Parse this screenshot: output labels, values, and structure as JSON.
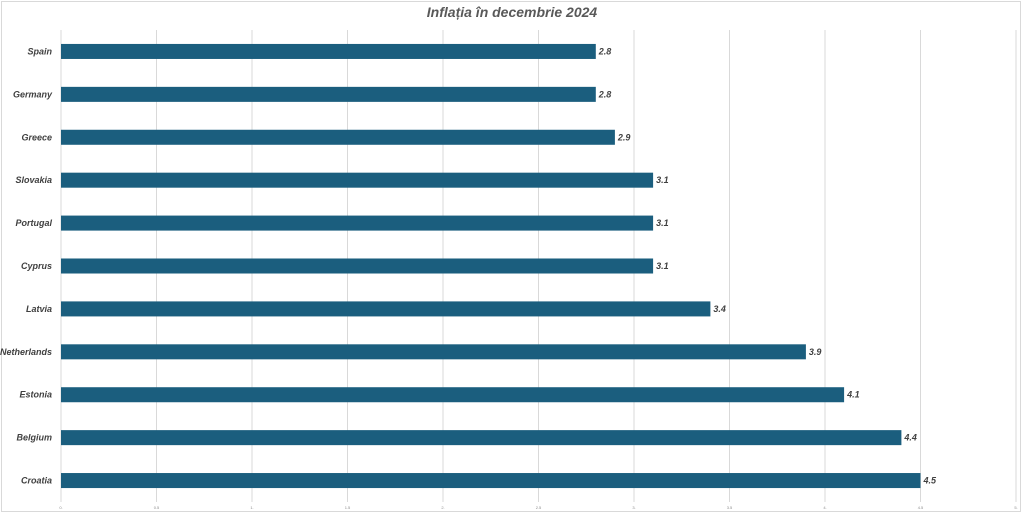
{
  "chart_data": {
    "type": "bar",
    "orientation": "horizontal",
    "title": "Inflația în decembrie 2024",
    "categories": [
      "Spain",
      "Germany",
      "Greece",
      "Slovakia",
      "Portugal",
      "Cyprus",
      "Latvia",
      "Netherlands",
      "Estonia",
      "Belgium",
      "Croatia"
    ],
    "values": [
      2.8,
      2.8,
      2.9,
      3.1,
      3.1,
      3.1,
      3.4,
      3.9,
      4.1,
      4.4,
      4.5
    ],
    "data_labels": [
      "2.8",
      "2.8",
      "2.9",
      "3.1",
      "3.1",
      "3.1",
      "3.4",
      "3.9",
      "4.1",
      "4.4",
      "4.5"
    ],
    "x_ticks": [
      0,
      0.5,
      1,
      1.5,
      2,
      2.5,
      3,
      3.5,
      4,
      4.5,
      5
    ],
    "x_tick_labels": [
      "0.",
      "0.5",
      "1.",
      "1.5",
      "2.",
      "2.5",
      "3.",
      "3.5",
      "4.",
      "4.5",
      "5."
    ],
    "xlim": [
      0,
      5
    ],
    "xlabel": "",
    "ylabel": "",
    "grid": true,
    "legend": "none",
    "bar_color": "#1b5e7e"
  }
}
